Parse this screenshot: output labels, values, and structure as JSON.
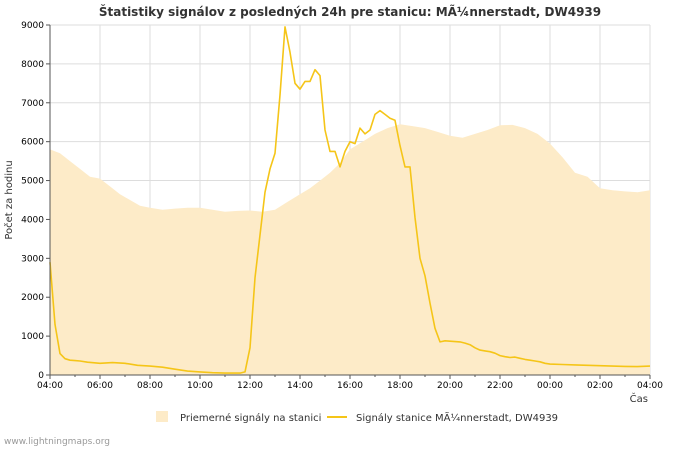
{
  "chart_data": {
    "type": "area+line",
    "title": "Štatistiky signálov z posledných 24h pre stanicu: MÃ¼nnerstadt, DW4939",
    "xlabel": "Čas",
    "ylabel": "Počet za hodinu",
    "ylim": [
      0,
      9000
    ],
    "yticks": [
      "0",
      "1000",
      "2000",
      "3000",
      "4000",
      "5000",
      "6000",
      "7000",
      "8000",
      "9000"
    ],
    "xlim_hours": [
      0,
      24
    ],
    "xticks": [
      "04:00",
      "06:00",
      "08:00",
      "10:00",
      "12:00",
      "14:00",
      "16:00",
      "18:00",
      "20:00",
      "22:00",
      "00:00",
      "02:00",
      "04:00"
    ],
    "grid": true,
    "legend_position": "bottom",
    "colors": {
      "area": "#fdebc8",
      "line": "#f5c518",
      "grid": "#dddddd",
      "axis": "#555555"
    },
    "series": [
      {
        "name": "Priemerné signály na stanici",
        "kind": "area",
        "x": [
          0,
          0.4,
          0.8,
          1.2,
          1.6,
          2.0,
          2.4,
          2.8,
          3.2,
          3.6,
          4.0,
          4.5,
          5.0,
          5.5,
          6.0,
          6.5,
          7.0,
          7.5,
          8.0,
          8.5,
          9.0,
          9.5,
          10.0,
          10.4,
          10.8,
          11.2,
          11.6,
          12.0,
          12.5,
          13.0,
          13.5,
          14.0,
          14.5,
          15.0,
          15.5,
          16.0,
          16.5,
          17.0,
          17.5,
          18.0,
          18.5,
          19.0,
          19.5,
          20.0,
          20.5,
          21.0,
          21.5,
          22.0,
          22.5,
          23.0,
          23.5,
          24.0
        ],
        "values": [
          5800,
          5700,
          5500,
          5300,
          5100,
          5050,
          4850,
          4650,
          4500,
          4350,
          4300,
          4250,
          4280,
          4300,
          4300,
          4250,
          4200,
          4220,
          4230,
          4200,
          4250,
          4450,
          4650,
          4800,
          5000,
          5200,
          5450,
          5800,
          6000,
          6200,
          6350,
          6450,
          6400,
          6350,
          6250,
          6150,
          6100,
          6200,
          6300,
          6420,
          6430,
          6350,
          6200,
          5950,
          5600,
          5200,
          5100,
          4800,
          4750,
          4720,
          4700,
          4750
        ]
      },
      {
        "name": "Signály stanice MÃ¼nnerstadt, DW4939",
        "kind": "line",
        "x": [
          0,
          0.2,
          0.4,
          0.6,
          0.8,
          1.0,
          1.2,
          1.5,
          2.0,
          2.5,
          3.0,
          3.5,
          4.0,
          4.5,
          5.0,
          5.5,
          6.0,
          6.5,
          7.0,
          7.5,
          7.6,
          7.8,
          8.0,
          8.2,
          8.4,
          8.6,
          8.8,
          9.0,
          9.2,
          9.4,
          9.6,
          9.8,
          10.0,
          10.2,
          10.4,
          10.6,
          10.8,
          11.0,
          11.2,
          11.4,
          11.6,
          11.8,
          12.0,
          12.2,
          12.4,
          12.6,
          12.8,
          13.0,
          13.2,
          13.4,
          13.6,
          13.8,
          14.0,
          14.2,
          14.4,
          14.6,
          14.8,
          15.0,
          15.2,
          15.4,
          15.6,
          15.8,
          16.0,
          16.2,
          16.4,
          16.6,
          16.8,
          17.0,
          17.2,
          17.4,
          17.6,
          17.8,
          18.0,
          18.2,
          18.4,
          18.6,
          18.8,
          19.0,
          19.2,
          19.4,
          19.6,
          19.8,
          20.0,
          20.5,
          21.0,
          21.5,
          22.0,
          22.5,
          23.0,
          23.5,
          24.0
        ],
        "values": [
          2900,
          1300,
          550,
          420,
          380,
          370,
          360,
          330,
          300,
          320,
          300,
          250,
          230,
          200,
          150,
          100,
          80,
          60,
          50,
          50,
          50,
          80,
          700,
          2500,
          3600,
          4700,
          5300,
          5700,
          7200,
          8950,
          8300,
          7500,
          7350,
          7550,
          7550,
          7850,
          7700,
          6300,
          5750,
          5750,
          5350,
          5750,
          6000,
          5950,
          6350,
          6200,
          6300,
          6700,
          6800,
          6700,
          6600,
          6550,
          5900,
          5350,
          5350,
          4050,
          3000,
          2550,
          1850,
          1200,
          850,
          880,
          870,
          860,
          850,
          820,
          780,
          700,
          640,
          620,
          600,
          560,
          500,
          470,
          450,
          460,
          430,
          400,
          380,
          360,
          340,
          300,
          280,
          270,
          260,
          250,
          240,
          230,
          220,
          215,
          230
        ]
      }
    ]
  },
  "footer": "www.lightningmaps.org"
}
